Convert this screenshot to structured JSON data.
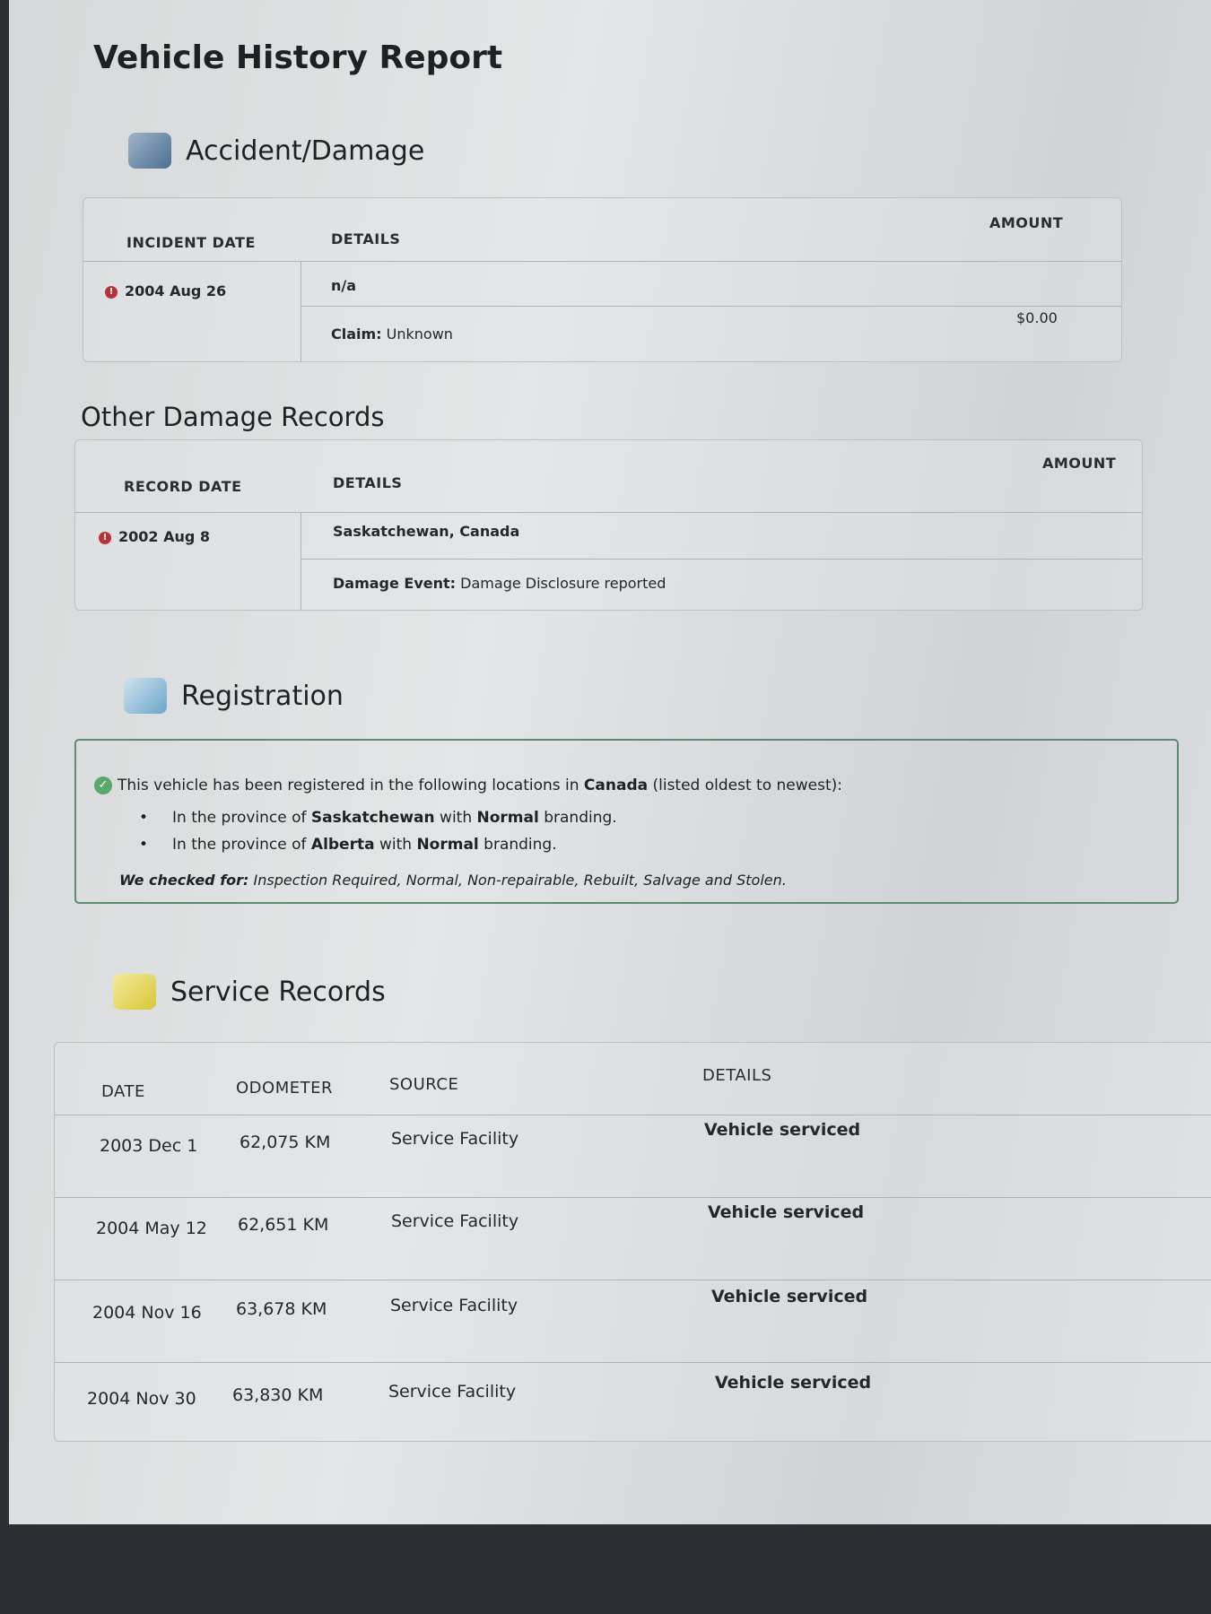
{
  "title": "Vehicle History Report",
  "accident": {
    "heading": "Accident/Damage",
    "icon": "tow-truck-icon",
    "headers": {
      "date": "INCIDENT DATE",
      "details": "DETAILS",
      "amount": "AMOUNT"
    },
    "rows": [
      {
        "date": "2004 Aug 26",
        "details": "n/a",
        "claim_label": "Claim:",
        "claim_value": "Unknown",
        "amount": "$0.00"
      }
    ]
  },
  "other_damage": {
    "heading": "Other Damage Records",
    "headers": {
      "date": "RECORD DATE",
      "details": "DETAILS",
      "amount": "AMOUNT"
    },
    "rows": [
      {
        "date": "2002 Aug 8",
        "location": "Saskatchewan, Canada",
        "event_label": "Damage Event:",
        "event_value": "Damage Disclosure reported"
      }
    ]
  },
  "registration": {
    "heading": "Registration",
    "icon": "registration-card-icon",
    "intro_pre": "This vehicle has been registered in the following locations in ",
    "intro_country": "Canada",
    "intro_post": " (listed oldest to newest):",
    "items": [
      {
        "pre": "In the province of ",
        "province": "Saskatchewan",
        "mid": " with ",
        "brand": "Normal",
        "post": " branding."
      },
      {
        "pre": "In the province of ",
        "province": "Alberta",
        "mid": " with ",
        "brand": "Normal",
        "post": " branding."
      }
    ],
    "checked_label": "We checked for:",
    "checked_value": " Inspection Required, Normal, Non-repairable, Rebuilt, Salvage and Stolen."
  },
  "service": {
    "heading": "Service Records",
    "icon": "service-wrench-icon",
    "headers": {
      "date": "DATE",
      "odometer": "ODOMETER",
      "source": "SOURCE",
      "details": "DETAILS"
    },
    "rows": [
      {
        "date": "2003 Dec 1",
        "odometer": "62,075 KM",
        "source": "Service Facility",
        "details": "Vehicle serviced"
      },
      {
        "date": "2004 May 12",
        "odometer": "62,651 KM",
        "source": "Service Facility",
        "details": "Vehicle serviced"
      },
      {
        "date": "2004 Nov 16",
        "odometer": "63,678 KM",
        "source": "Service Facility",
        "details": "Vehicle serviced"
      },
      {
        "date": "2004 Nov 30",
        "odometer": "63,830 KM",
        "source": "Service Facility",
        "details": "Vehicle serviced"
      }
    ]
  },
  "colors": {
    "alert": "#b8323a",
    "success": "#5aa86a",
    "border_green": "#5f8a72"
  }
}
